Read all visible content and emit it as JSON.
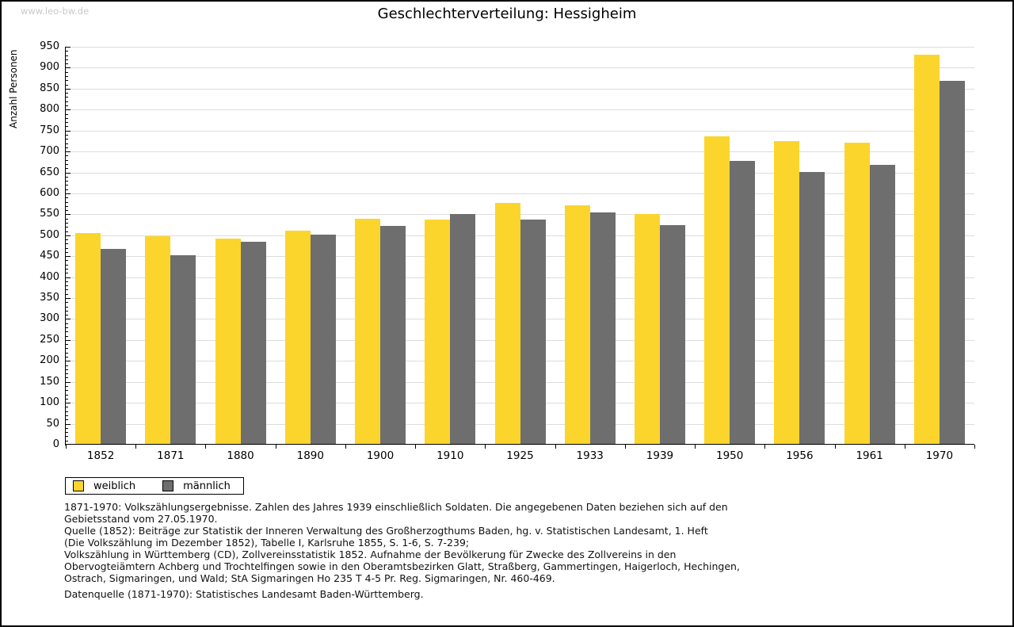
{
  "watermark": "www.leo-bw.de",
  "chart_data": {
    "type": "bar",
    "title": "Geschlechterverteilung: Hessigheim",
    "xlabel": "",
    "ylabel": "Anzahl Personen",
    "ylim": [
      0,
      950
    ],
    "ytick_step": 50,
    "ytick_minor_step": 10,
    "grid": "horizontal",
    "legend_position": "bottom-left",
    "gridline_color": "#dddddd",
    "categories": [
      "1852",
      "1871",
      "1880",
      "1890",
      "1900",
      "1910",
      "1925",
      "1933",
      "1939",
      "1950",
      "1956",
      "1961",
      "1970"
    ],
    "series": [
      {
        "name": "weiblich",
        "color": "#FCD52C",
        "values": [
          503,
          495,
          491,
          510,
          538,
          536,
          576,
          570,
          548,
          735,
          723,
          720,
          930
        ]
      },
      {
        "name": "männlich",
        "color": "#6E6E6E",
        "values": [
          466,
          450,
          482,
          500,
          520,
          548,
          536,
          553,
          522,
          676,
          650,
          666,
          867
        ]
      }
    ]
  },
  "notes": {
    "lines": [
      "1871-1970: Volkszählungsergebnisse. Zahlen des Jahres 1939 einschließlich Soldaten. Die angegebenen Daten beziehen sich auf den",
      "Gebietsstand vom 27.05.1970.",
      "Quelle (1852): Beiträge zur Statistik der Inneren Verwaltung des Großherzogthums Baden, hg. v. Statistischen Landesamt, 1. Heft",
      "(Die Volkszählung im Dezember 1852), Tabelle I, Karlsruhe 1855, S. 1-6, S. 7-239;",
      "Volkszählung in Württemberg (CD), Zollvereinsstatistik 1852. Aufnahme der Bevölkerung für Zwecke des Zollvereins in den",
      "Obervogteiämtern Achberg und Trochtelfingen sowie in den Oberamtsbezirken Glatt, Straßberg, Gammertingen, Haigerloch, Hechingen,",
      "Ostrach, Sigmaringen, und Wald; StA Sigmaringen Ho 235 T 4-5 Pr. Reg. Sigmaringen, Nr. 460-469."
    ],
    "datasource": "Datenquelle (1871-1970): Statistisches Landesamt Baden-Württemberg."
  }
}
